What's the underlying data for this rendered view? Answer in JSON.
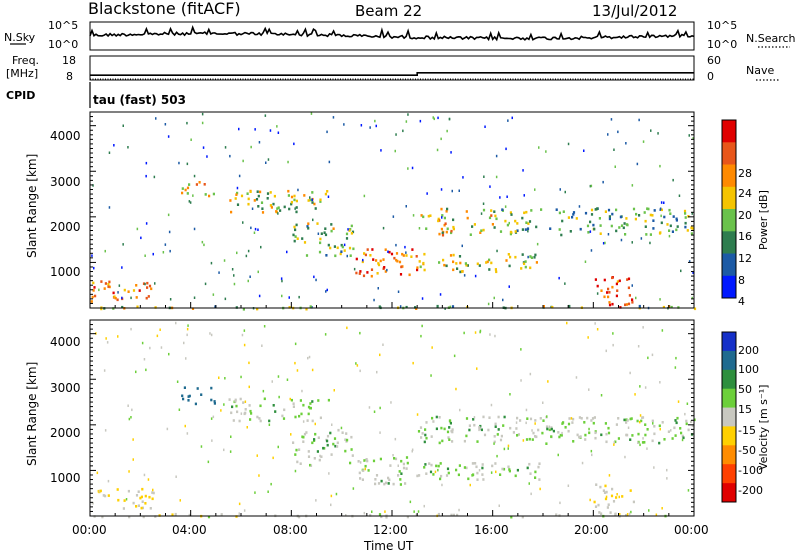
{
  "header": {
    "station": "Blackstone (fitACF)",
    "beam": "Beam 22",
    "date": "13/Jul/2012"
  },
  "noise_panel": {
    "left_label": "N.Sky",
    "right_label": "N.Search",
    "ticks_left": [
      "10^5",
      "10^0"
    ],
    "ticks_right": [
      "10^5",
      "10^0"
    ]
  },
  "freq_panel": {
    "left_label_1": "Freq.",
    "left_label_2": "[MHz]",
    "right_label": "Nave",
    "ticks_left": [
      "18",
      "8"
    ],
    "ticks_right": [
      "60",
      "0"
    ]
  },
  "cpid": {
    "label": "CPID",
    "value": "tau (fast) 503"
  },
  "power_panel": {
    "ylabel": "Slant Range [km]",
    "yticks": [
      "4000",
      "3000",
      "2000",
      "1000"
    ],
    "colorbar_label": "Power [dB]",
    "colorbar_ticks": [
      "28",
      "24",
      "20",
      "16",
      "12",
      "8",
      "4"
    ],
    "colorbar_colors": [
      "#0018ff",
      "#1c5aa5",
      "#2e7d4f",
      "#6ac24b",
      "#f5c400",
      "#ff8a00",
      "#e8561a",
      "#e00000"
    ]
  },
  "velocity_panel": {
    "ylabel": "Slant Range [km]",
    "yticks": [
      "4000",
      "3000",
      "2000",
      "1000"
    ],
    "colorbar_label": "Velocity [m s⁻¹]",
    "colorbar_ticks": [
      "200",
      "100",
      "50",
      "15",
      "-15",
      "-50",
      "-100",
      "-200"
    ],
    "colorbar_colors": [
      "#1530c8",
      "#1f6a8f",
      "#2e8f3e",
      "#6ccf3a",
      "#c8c8c0",
      "#ffd000",
      "#ff8c00",
      "#ff4000",
      "#e00000"
    ]
  },
  "xaxis": {
    "label": "Time UT",
    "ticks": [
      "00:00",
      "04:00",
      "08:00",
      "12:00",
      "16:00",
      "20:00",
      "00:00"
    ]
  },
  "chart_data": {
    "type": "heatmap",
    "title": "Blackstone (fitACF)",
    "x_range_hours": [
      0,
      24
    ],
    "y_range_km": [
      180,
      4500
    ],
    "freq_mhz_steps": [
      {
        "from_h": 0,
        "to_h": 13,
        "value": 10
      },
      {
        "from_h": 13,
        "to_h": 24,
        "value": 11
      }
    ],
    "echo_regions": [
      {
        "t0": 0.0,
        "t1": 2.5,
        "r0": 350,
        "r1": 800,
        "power_db": 24,
        "velocity": -15
      },
      {
        "t0": 3.6,
        "t1": 5.0,
        "r0": 2600,
        "r1": 3050,
        "power_db": 20,
        "velocity": 100
      },
      {
        "t0": 5.5,
        "t1": 9.5,
        "r0": 2300,
        "r1": 2800,
        "power_db": 16,
        "velocity": 15
      },
      {
        "t0": 8.0,
        "t1": 10.5,
        "r0": 1300,
        "r1": 2100,
        "power_db": 14,
        "velocity": 15
      },
      {
        "t0": 10.5,
        "t1": 13.0,
        "r0": 900,
        "r1": 1500,
        "power_db": 24,
        "velocity": 15
      },
      {
        "t0": 13.0,
        "t1": 16.0,
        "r0": 1800,
        "r1": 2400,
        "power_db": 18,
        "velocity": 15
      },
      {
        "t0": 13.0,
        "t1": 18.0,
        "r0": 1000,
        "r1": 1400,
        "power_db": 16,
        "velocity": 15
      },
      {
        "t0": 16.0,
        "t1": 24.0,
        "r0": 1800,
        "r1": 2400,
        "power_db": 12,
        "velocity": 15
      },
      {
        "t0": 20.0,
        "t1": 21.6,
        "r0": 200,
        "r1": 900,
        "power_db": 26,
        "velocity": -15
      },
      {
        "t0": 0.0,
        "t1": 24.0,
        "r0": 180,
        "r1": 250,
        "power_db": 14,
        "velocity": 0
      }
    ]
  }
}
